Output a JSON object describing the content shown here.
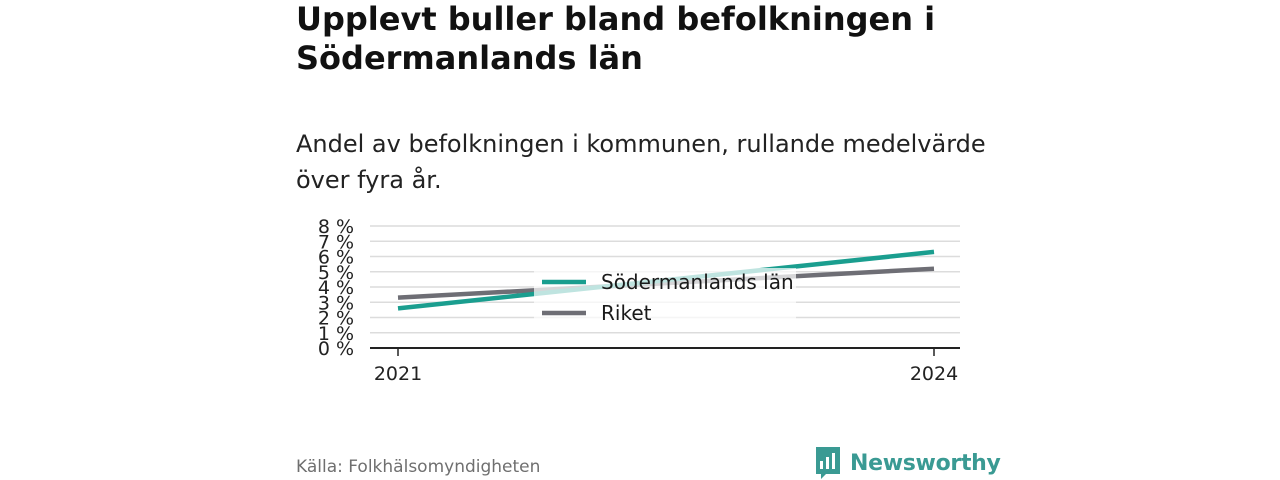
{
  "title": "Upplevt buller bland befolkningen i Södermanlands län",
  "subtitle": "Andel av befolkningen i kommunen, rullande medelvärde över fyra år.",
  "source": "Källa: Folkhälsomyndigheten",
  "brand": {
    "name": "Newsworthy",
    "color": "#3a9a93",
    "icon": "newsworthy-logo-icon"
  },
  "chart_data": {
    "type": "line",
    "x": [
      2021,
      2024
    ],
    "x_tick_labels": [
      "2021",
      "2024"
    ],
    "y_ticks": [
      0,
      1,
      2,
      3,
      4,
      5,
      6,
      7,
      8
    ],
    "y_tick_labels": [
      "0 %",
      "1 %",
      "2 %",
      "3 %",
      "4 %",
      "5 %",
      "6 %",
      "7 %",
      "8 %"
    ],
    "ylim": [
      0,
      8
    ],
    "grid": true,
    "legend_position": "center",
    "series": [
      {
        "name": "Södermanlands län",
        "color": "#1a9e8f",
        "values": [
          2.6,
          6.3
        ]
      },
      {
        "name": "Riket",
        "color": "#6e6e75",
        "values": [
          3.3,
          5.2
        ]
      }
    ]
  }
}
